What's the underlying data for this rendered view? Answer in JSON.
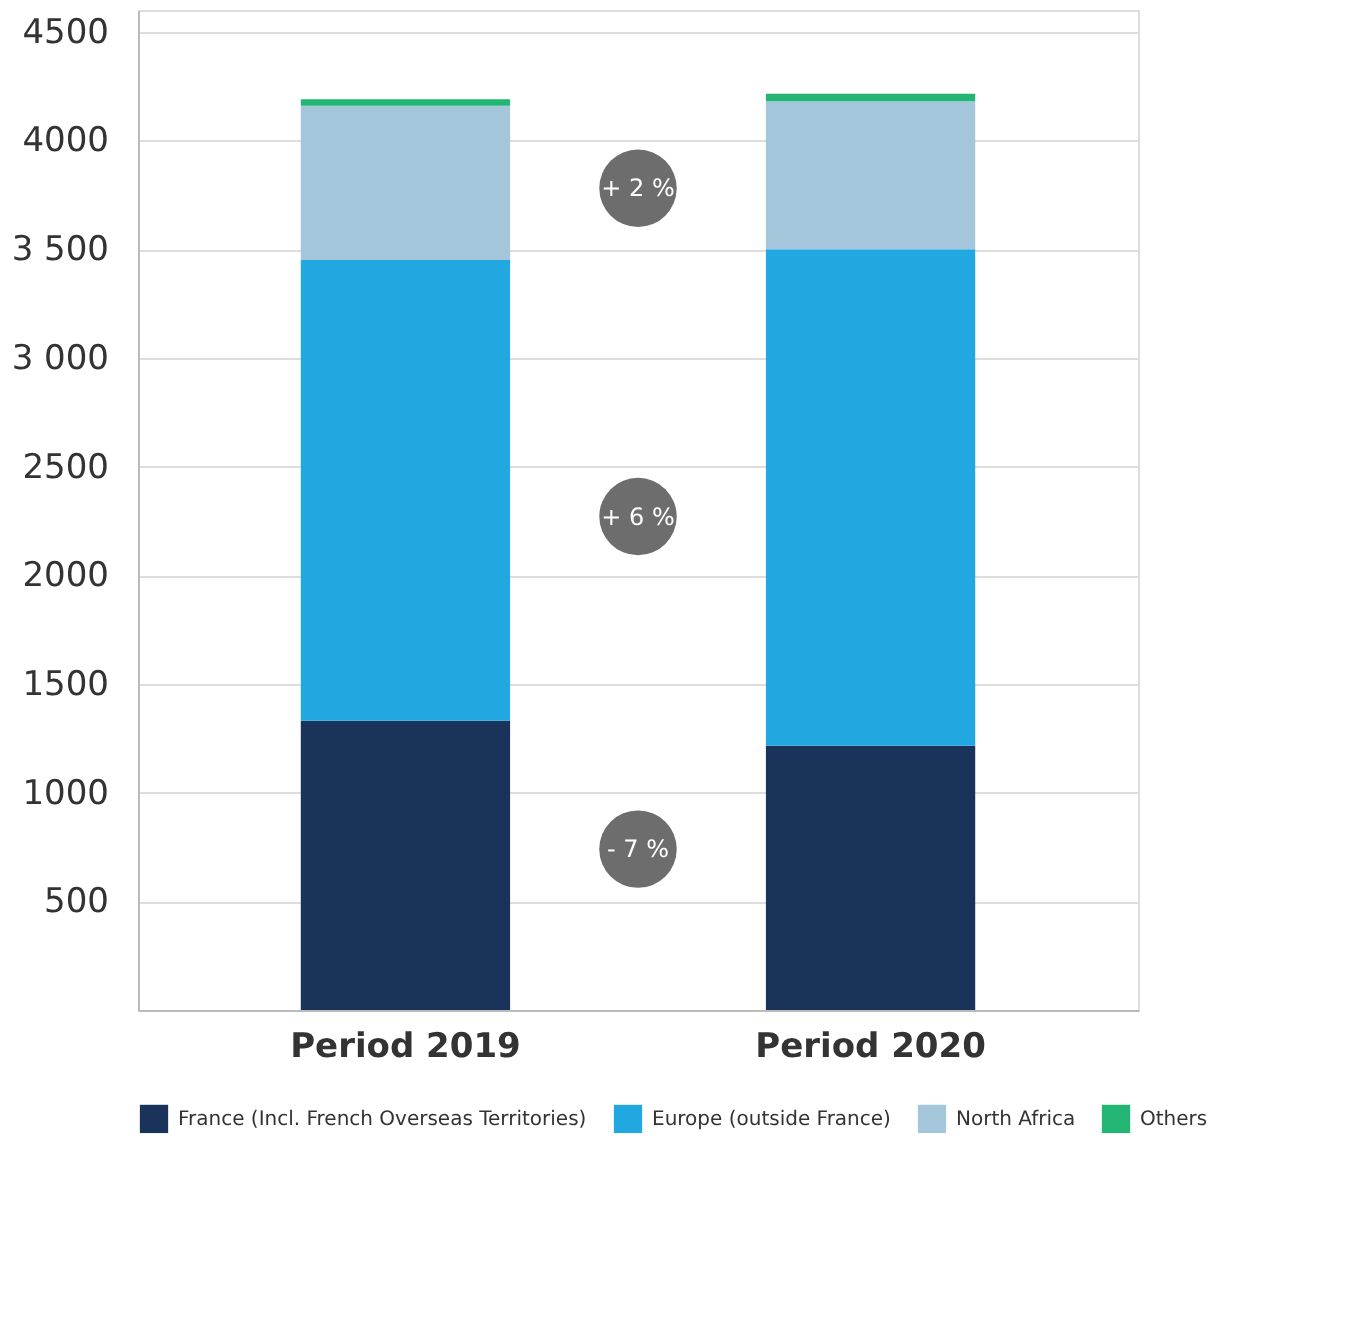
{
  "chart_data": {
    "type": "bar",
    "stacked": true,
    "categories": [
      "Period 2019",
      "Period 2020"
    ],
    "series": [
      {
        "name": "France (Incl. French Overseas Territories)",
        "color": "#1a335a",
        "values": [
          1330,
          1215
        ]
      },
      {
        "name": "Europe (outside France)",
        "color": "#22a8e0",
        "values": [
          2120,
          2285
        ]
      },
      {
        "name": "North Africa",
        "color": "#a3c6da",
        "values": [
          710,
          680
        ]
      },
      {
        "name": "Others",
        "color": "#22b573",
        "values": [
          30,
          35
        ]
      }
    ],
    "ylim": [
      0,
      4600
    ],
    "yticks": [
      500,
      1000,
      1500,
      2000,
      2500,
      {
        "value": 3000,
        "label": "3 000"
      },
      {
        "value": 3500,
        "label": "3 500"
      },
      4000,
      4500
    ],
    "grid": "y",
    "legend": "bottom",
    "annotations": [
      {
        "text": "+ 2 %",
        "y": 3780
      },
      {
        "text": "+ 6 %",
        "y": 2270
      },
      {
        "text": "- 7 %",
        "y": 740
      }
    ]
  }
}
